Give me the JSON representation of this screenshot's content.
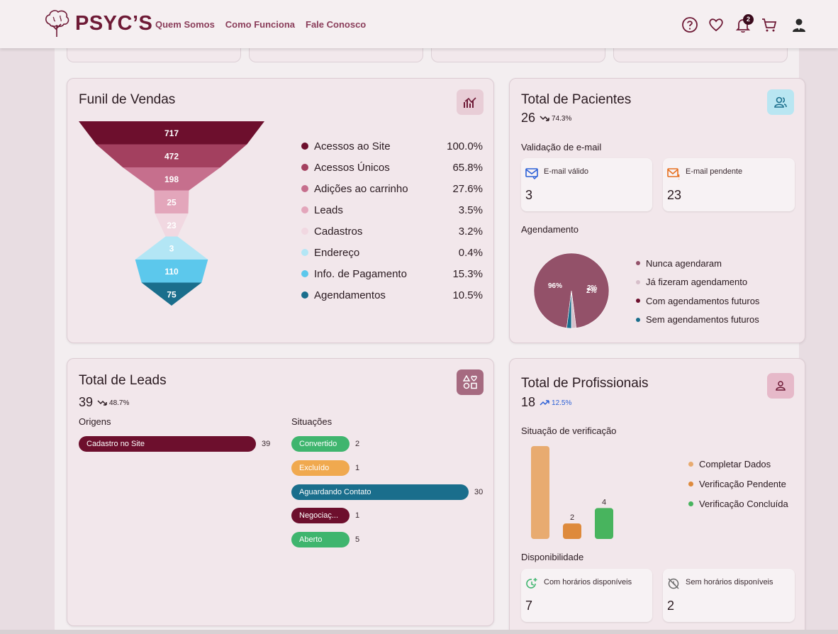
{
  "header": {
    "logo_text": "PSYC’S",
    "nav": [
      "Quem Somos",
      "Como Funciona",
      "Fale Conosco"
    ],
    "notifications_badge": "2",
    "icons": [
      "help-icon",
      "heart-icon",
      "bell-icon",
      "cart-icon",
      "user-avatar-icon"
    ]
  },
  "funnel": {
    "title": "Funil de Vendas",
    "stages": [
      {
        "label": "Acessos ao Site",
        "value": 717,
        "display": "717",
        "percent": "100.0%",
        "color": "#6d0f2d"
      },
      {
        "label": "Acessos Únicos",
        "value": 472,
        "display": "472",
        "percent": "65.8%",
        "color": "#a3405f"
      },
      {
        "label": "Adições ao carrinho",
        "value": 198,
        "display": "198",
        "percent": "27.6%",
        "color": "#c66f8d"
      },
      {
        "label": "Leads",
        "value": 25,
        "display": "25",
        "percent": "3.5%",
        "color": "#e3a6bb"
      },
      {
        "label": "Cadastros",
        "value": 23,
        "display": "23",
        "percent": "3.2%",
        "color": "#f1d8e1"
      },
      {
        "label": "Endereço",
        "value": 3,
        "display": "3",
        "percent": "0.4%",
        "color": "#b3e6f5"
      },
      {
        "label": "Info. de Pagamento",
        "value": 110,
        "display": "110",
        "percent": "15.3%",
        "color": "#5cc8ec"
      },
      {
        "label": "Agendamentos",
        "value": 75,
        "display": "75",
        "percent": "10.5%",
        "color": "#1a6e8c"
      }
    ]
  },
  "pacientes": {
    "title": "Total de Pacientes",
    "total": "26",
    "trend": "74.3%",
    "email_section": "Validação de e-mail",
    "email_valid_label": "E-mail válido",
    "email_valid_value": "3",
    "email_pending_label": "E-mail pendente",
    "email_pending_value": "23",
    "schedule_section": "Agendamento",
    "pie": {
      "type": "pie",
      "slices": [
        {
          "label": "Nunca agendaram",
          "value": 96,
          "display": "96%",
          "color": "#935169"
        },
        {
          "label": "Já fizeram agendamento",
          "value": 2,
          "display": "2%",
          "color": "#d7bfca"
        },
        {
          "label": "Com agendamentos futuros",
          "value": 0,
          "display": "",
          "color": "#6d0f2d"
        },
        {
          "label": "Sem agendamentos futuros",
          "value": 2,
          "display": "2%",
          "color": "#1a6e8c"
        }
      ]
    }
  },
  "leads": {
    "title": "Total de Leads",
    "total": "39",
    "trend": "48.7%",
    "origins_label": "Origens",
    "origins": [
      {
        "label": "Cadastro no Site",
        "count": 39,
        "display": "39",
        "color": "#6d0f2d"
      }
    ],
    "situations_label": "Situações",
    "situations": [
      {
        "label": "Convertido",
        "count": 2,
        "display": "2",
        "color": "#3fb56e"
      },
      {
        "label": "Excluído",
        "count": 1,
        "display": "1",
        "color": "#f0a94f"
      },
      {
        "label": "Aguardando Contato",
        "count": 30,
        "display": "30",
        "color": "#1a6e8c"
      },
      {
        "label": "Negociaç...",
        "count": 1,
        "display": "1",
        "color": "#6d0f2d"
      },
      {
        "label": "Aberto",
        "count": 5,
        "display": "5",
        "color": "#3fb56e"
      }
    ]
  },
  "profissionais": {
    "title": "Total de Profissionais",
    "total": "18",
    "trend": "12.5%",
    "verification_label": "Situação de verificação",
    "chart_data": {
      "type": "bar",
      "categories": [
        "Completar Dados",
        "Verificação Pendente",
        "Verificação Concluída"
      ],
      "values": [
        12,
        2,
        4
      ],
      "value_labels": [
        "",
        "2",
        "4"
      ],
      "colors": [
        "#e8ab70",
        "#de8a3c",
        "#48b45e"
      ],
      "legend": "right"
    },
    "availability_label": "Disponibilidade",
    "available_label": "Com horários disponíveis",
    "available_value": "7",
    "unavailable_label": "Sem horários disponíveis",
    "unavailable_value": "2"
  }
}
